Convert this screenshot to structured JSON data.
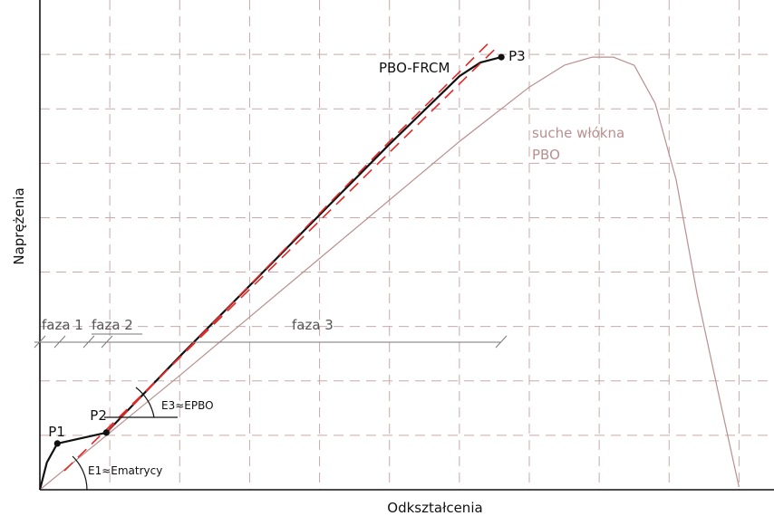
{
  "chart_data": {
    "type": "line",
    "xlabel": "Odkształcenia",
    "ylabel": "Naprężenia",
    "xlim": [
      0,
      10.5
    ],
    "ylim": [
      0,
      9
    ],
    "grid": true,
    "series": [
      {
        "name": "PBO-FRCM",
        "color": "#111111",
        "x": [
          0,
          0.1,
          0.25,
          0.95,
          2.0,
          3.5,
          5.0,
          6.0,
          6.3,
          6.6
        ],
        "y": [
          0,
          0.5,
          0.85,
          1.05,
          2.45,
          4.4,
          6.35,
          7.6,
          7.85,
          7.95
        ]
      },
      {
        "name": "suche włókna PBO",
        "color": "#b98f8f",
        "x": [
          0,
          2.0,
          4.0,
          6.0,
          7.0,
          7.5,
          7.9,
          8.2,
          8.5,
          8.8,
          9.1,
          9.4,
          9.7,
          10.0
        ],
        "y": [
          0,
          2.1,
          4.25,
          6.4,
          7.4,
          7.8,
          7.95,
          7.95,
          7.8,
          7.1,
          5.7,
          3.6,
          1.8,
          0.05
        ]
      },
      {
        "name": "",
        "style": "dashed",
        "color": "#e02a2a",
        "x": [
          0.35,
          6.55
        ],
        "y": [
          0.35,
          8.15
        ]
      },
      {
        "name": "",
        "style": "dashed",
        "color": "#e02a2a",
        "x": [
          0.95,
          5.0,
          6.45
        ],
        "y": [
          1.05,
          6.4,
          8.25
        ]
      }
    ],
    "points": [
      {
        "label": "P1",
        "x": 0.25,
        "y": 0.85
      },
      {
        "label": "P2",
        "x": 0.95,
        "y": 1.05
      },
      {
        "label": "P3",
        "x": 6.6,
        "y": 7.95
      }
    ],
    "annotations": {
      "series_label_frcm": "PBO-FRCM",
      "dry_fibers_line1": "suche włókna",
      "dry_fibers_line2": "PBO",
      "modulus_1": "E1≈Ematrycy",
      "modulus_3": "E3≈EPBO",
      "phase_1": "faza 1",
      "phase_2": "faza 2",
      "phase_3": "faza 3"
    },
    "colors": {
      "grid": "#c9a9a9",
      "axis": "#111111",
      "dry_fibers": "#b98f8f",
      "tangent": "#e02a2a"
    }
  }
}
